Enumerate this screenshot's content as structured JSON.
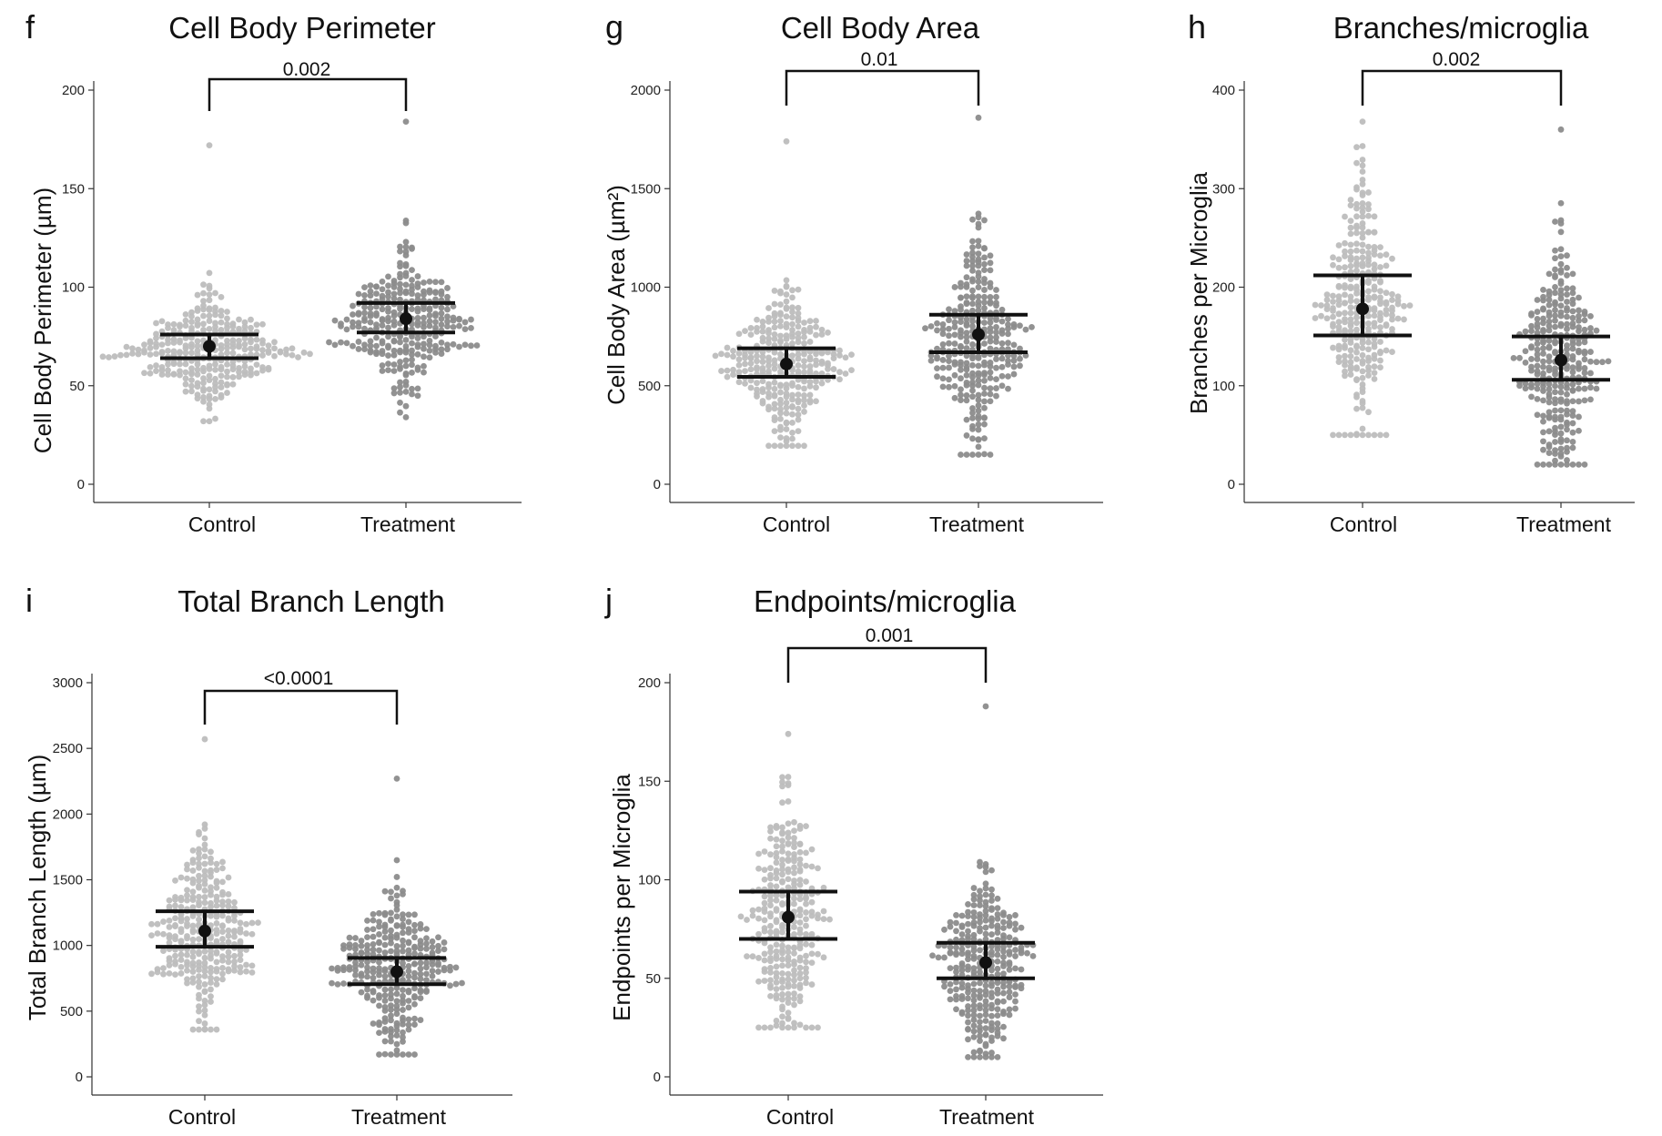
{
  "figure": {
    "background": "#ffffff",
    "colors": {
      "control": "#bdbdbd",
      "treatment": "#8c8c8c",
      "summary": "#111111",
      "axis": "#333333"
    }
  },
  "chart_data": [
    {
      "type": "scatter",
      "panel": "f",
      "title": "Cell Body Perimeter",
      "xlabel": "",
      "ylabel": "Cell Body Perimeter (µm)",
      "categories": [
        "Control",
        "Treatment"
      ],
      "ylim": [
        0,
        200
      ],
      "yticks": [
        0,
        50,
        100,
        150,
        200
      ],
      "pvalue": "0.002",
      "series": [
        {
          "name": "Control",
          "summary": {
            "center": 70,
            "lower": 64,
            "upper": 76
          },
          "distribution": {
            "min": 32,
            "max": 172,
            "median": 68,
            "spread": 12
          }
        },
        {
          "name": "Treatment",
          "summary": {
            "center": 84,
            "lower": 77,
            "upper": 92
          },
          "distribution": {
            "min": 34,
            "max": 184,
            "median": 82,
            "spread": 16
          }
        }
      ]
    },
    {
      "type": "scatter",
      "panel": "g",
      "title": "Cell Body Area",
      "xlabel": "",
      "ylabel": "Cell Body Area (µm²)",
      "categories": [
        "Control",
        "Treatment"
      ],
      "ylim": [
        0,
        2000
      ],
      "yticks": [
        0,
        500,
        1000,
        1500,
        2000
      ],
      "pvalue": "0.01",
      "series": [
        {
          "name": "Control",
          "summary": {
            "center": 610,
            "lower": 545,
            "upper": 690
          },
          "distribution": {
            "min": 195,
            "max": 1740,
            "median": 600,
            "spread": 170
          }
        },
        {
          "name": "Treatment",
          "summary": {
            "center": 760,
            "lower": 670,
            "upper": 860
          },
          "distribution": {
            "min": 150,
            "max": 1860,
            "median": 740,
            "spread": 230
          }
        }
      ]
    },
    {
      "type": "scatter",
      "panel": "h",
      "title": "Branches/microglia",
      "xlabel": "",
      "ylabel": "Branches per Microglia",
      "categories": [
        "Control",
        "Treatment"
      ],
      "ylim": [
        0,
        400
      ],
      "yticks": [
        0,
        100,
        200,
        300,
        400
      ],
      "pvalue": "0.002",
      "series": [
        {
          "name": "Control",
          "summary": {
            "center": 178,
            "lower": 151,
            "upper": 212
          },
          "distribution": {
            "min": 50,
            "max": 368,
            "median": 180,
            "spread": 55
          }
        },
        {
          "name": "Treatment",
          "summary": {
            "center": 126,
            "lower": 106,
            "upper": 150
          },
          "distribution": {
            "min": 20,
            "max": 360,
            "median": 125,
            "spread": 50
          }
        }
      ]
    },
    {
      "type": "scatter",
      "panel": "i",
      "title": "Total Branch Length",
      "xlabel": "",
      "ylabel": "Total Branch Length (µm)",
      "categories": [
        "Control",
        "Treatment"
      ],
      "ylim": [
        0,
        3000
      ],
      "yticks": [
        0,
        500,
        1000,
        1500,
        2000,
        2500,
        3000
      ],
      "pvalue": "<0.0001",
      "series": [
        {
          "name": "Control",
          "summary": {
            "center": 1110,
            "lower": 990,
            "upper": 1260
          },
          "distribution": {
            "min": 360,
            "max": 2570,
            "median": 1100,
            "spread": 300
          }
        },
        {
          "name": "Treatment",
          "summary": {
            "center": 800,
            "lower": 705,
            "upper": 905
          },
          "distribution": {
            "min": 170,
            "max": 2270,
            "median": 790,
            "spread": 260
          }
        }
      ]
    },
    {
      "type": "scatter",
      "panel": "j",
      "title": "Endpoints/microglia",
      "xlabel": "",
      "ylabel": "Endpoints per Microglia",
      "categories": [
        "Control",
        "Treatment"
      ],
      "ylim": [
        0,
        200
      ],
      "yticks": [
        0,
        50,
        100,
        150,
        200
      ],
      "pvalue": "0.001",
      "series": [
        {
          "name": "Control",
          "summary": {
            "center": 81,
            "lower": 70,
            "upper": 94
          },
          "distribution": {
            "min": 25,
            "max": 174,
            "median": 80,
            "spread": 28
          }
        },
        {
          "name": "Treatment",
          "summary": {
            "center": 58,
            "lower": 50,
            "upper": 68
          },
          "distribution": {
            "min": 10,
            "max": 188,
            "median": 57,
            "spread": 22
          }
        }
      ]
    }
  ]
}
